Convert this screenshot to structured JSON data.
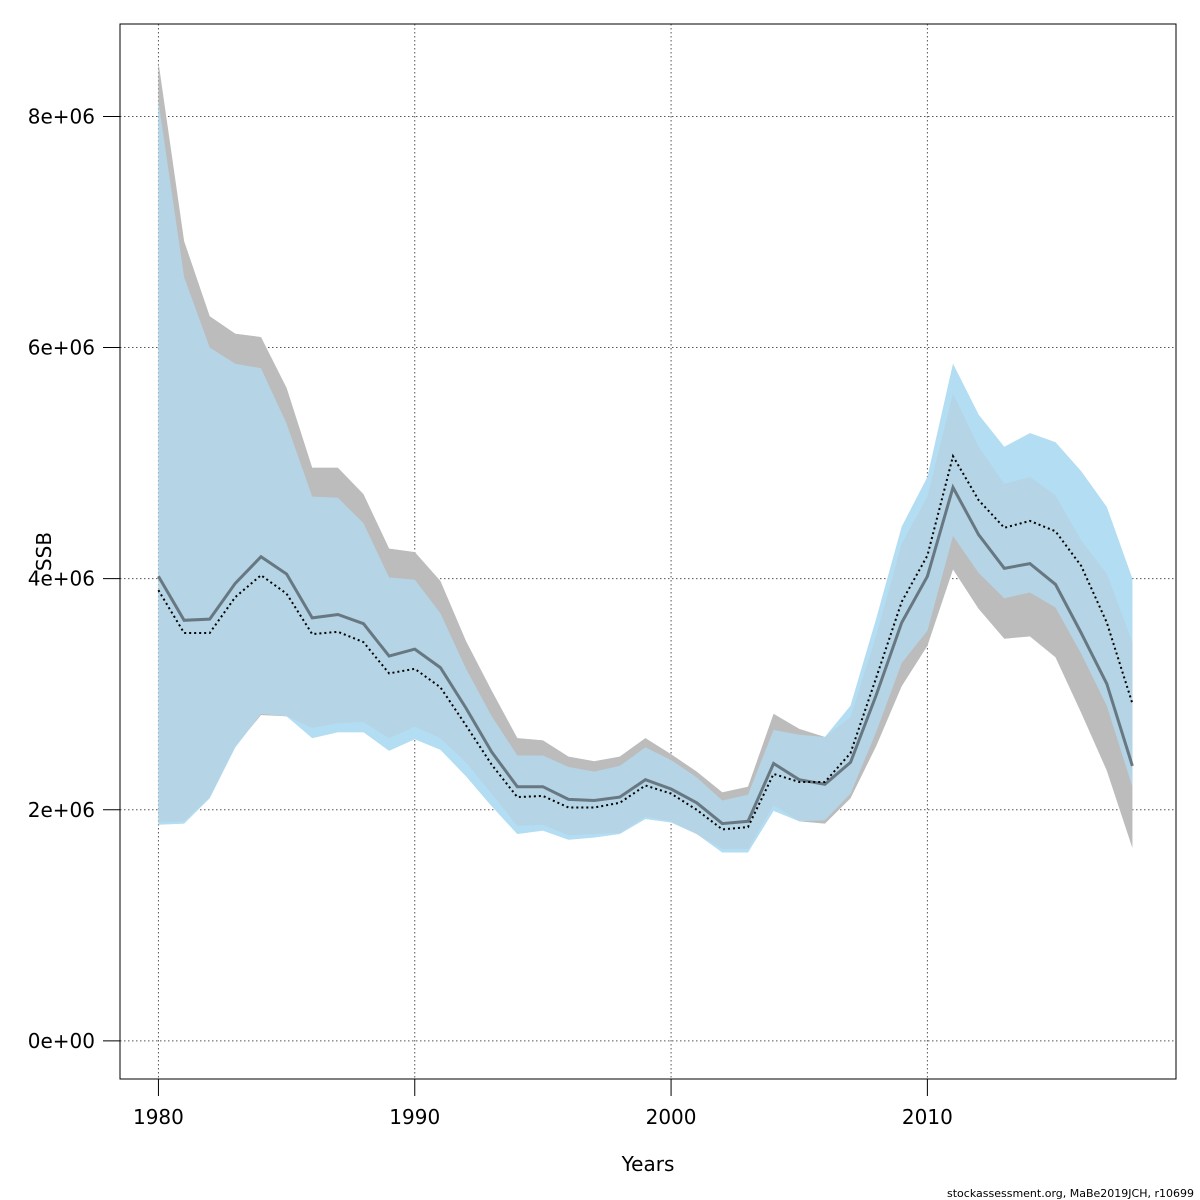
{
  "chart_data": {
    "type": "area",
    "xlabel": "Years",
    "ylabel": "SSB",
    "xlim": [
      1978.5,
      2019.7
    ],
    "ylim": [
      -330000,
      8800000
    ],
    "x_ticks": [
      1980,
      1990,
      2000,
      2010
    ],
    "x_tick_labels": [
      "1980",
      "1990",
      "2000",
      "2010"
    ],
    "y_ticks": [
      0,
      2000000,
      4000000,
      6000000,
      8000000
    ],
    "y_tick_labels": [
      "0e+00",
      "2e+06",
      "4e+06",
      "6e+06",
      "8e+06"
    ],
    "grid": true,
    "colors": {
      "grey_band": "#bcbcbc",
      "blue_band": "#b3ddf2",
      "grey_line": "#4d5a60",
      "blue_line": "#000000",
      "grid": "#555555"
    },
    "x": [
      1980,
      1981,
      1982,
      1983,
      1984,
      1985,
      1986,
      1987,
      1988,
      1989,
      1990,
      1991,
      1992,
      1993,
      1994,
      1995,
      1996,
      1997,
      1998,
      1999,
      2000,
      2001,
      2002,
      2003,
      2004,
      2005,
      2006,
      2007,
      2008,
      2009,
      2010,
      2011,
      2012,
      2013,
      2014,
      2015,
      2016,
      2017,
      2018
    ],
    "series": [
      {
        "line_style": "solid",
        "color": "#4d5a60",
        "band_color": "#bcbcbc",
        "values": [
          4020000,
          3640000,
          3650000,
          3960000,
          4190000,
          4040000,
          3660000,
          3690000,
          3610000,
          3330000,
          3390000,
          3230000,
          2880000,
          2500000,
          2200000,
          2200000,
          2090000,
          2080000,
          2110000,
          2260000,
          2180000,
          2060000,
          1880000,
          1900000,
          2400000,
          2260000,
          2220000,
          2410000,
          2990000,
          3620000,
          4020000,
          4790000,
          4380000,
          4090000,
          4130000,
          3950000,
          3530000,
          3090000,
          2380000
        ],
        "lower": [
          1890000,
          1900000,
          2110000,
          2550000,
          2820000,
          2810000,
          2710000,
          2750000,
          2760000,
          2620000,
          2720000,
          2620000,
          2410000,
          2140000,
          1860000,
          1870000,
          1780000,
          1790000,
          1800000,
          1940000,
          1900000,
          1790000,
          1660000,
          1660000,
          2040000,
          1900000,
          1880000,
          2100000,
          2550000,
          3070000,
          3420000,
          4080000,
          3740000,
          3480000,
          3500000,
          3320000,
          2840000,
          2340000,
          1670000
        ],
        "upper": [
          8470000,
          6920000,
          6270000,
          6120000,
          6090000,
          5650000,
          4960000,
          4960000,
          4730000,
          4260000,
          4230000,
          3980000,
          3460000,
          3030000,
          2620000,
          2600000,
          2460000,
          2420000,
          2460000,
          2620000,
          2480000,
          2330000,
          2150000,
          2200000,
          2830000,
          2700000,
          2630000,
          2800000,
          3500000,
          4300000,
          4710000,
          5600000,
          5140000,
          4820000,
          4880000,
          4720000,
          4330000,
          4040000,
          3450000
        ]
      },
      {
        "line_style": "dotted",
        "color": "#000000",
        "band_color": "#b3ddf2",
        "values": [
          3900000,
          3530000,
          3530000,
          3840000,
          4030000,
          3870000,
          3520000,
          3540000,
          3450000,
          3180000,
          3220000,
          3060000,
          2730000,
          2390000,
          2110000,
          2120000,
          2020000,
          2020000,
          2060000,
          2210000,
          2140000,
          2000000,
          1830000,
          1850000,
          2310000,
          2240000,
          2240000,
          2490000,
          3140000,
          3800000,
          4200000,
          5060000,
          4680000,
          4440000,
          4500000,
          4410000,
          4110000,
          3620000,
          2920000
        ],
        "lower": [
          1870000,
          1880000,
          2100000,
          2540000,
          2830000,
          2810000,
          2620000,
          2670000,
          2670000,
          2510000,
          2610000,
          2520000,
          2290000,
          2030000,
          1790000,
          1820000,
          1740000,
          1760000,
          1790000,
          1920000,
          1890000,
          1790000,
          1630000,
          1630000,
          1990000,
          1900000,
          1910000,
          2140000,
          2670000,
          3270000,
          3550000,
          4370000,
          4050000,
          3830000,
          3880000,
          3750000,
          3350000,
          2900000,
          2200000
        ],
        "upper": [
          8130000,
          6610000,
          6000000,
          5860000,
          5820000,
          5340000,
          4710000,
          4700000,
          4480000,
          4010000,
          3990000,
          3700000,
          3220000,
          2810000,
          2470000,
          2470000,
          2370000,
          2330000,
          2380000,
          2540000,
          2430000,
          2280000,
          2080000,
          2130000,
          2690000,
          2650000,
          2630000,
          2900000,
          3650000,
          4450000,
          4880000,
          5860000,
          5420000,
          5140000,
          5260000,
          5180000,
          4930000,
          4620000,
          4000000
        ]
      }
    ],
    "credit": "stockassessment.org, MaBe2019JCH, r10699"
  }
}
